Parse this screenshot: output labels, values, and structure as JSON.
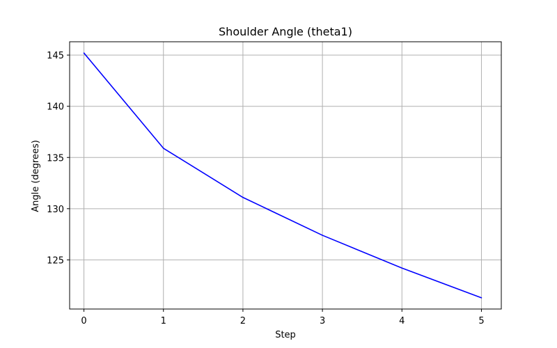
{
  "chart_data": {
    "type": "line",
    "title": "Shoulder Angle (theta1)",
    "xlabel": "Step",
    "ylabel": "Angle (degrees)",
    "x": [
      0,
      1,
      2,
      3,
      4,
      5
    ],
    "series": [
      {
        "values": [
          145.2,
          135.9,
          131.1,
          127.4,
          124.2,
          121.3
        ],
        "color": "#0000ff"
      }
    ],
    "xlim": [
      -0.18,
      5.25
    ],
    "ylim": [
      120.2,
      146.3
    ],
    "xticks": [
      0,
      1,
      2,
      3,
      4,
      5
    ],
    "yticks": [
      125,
      130,
      135,
      140,
      145
    ],
    "grid": true,
    "grid_color": "#b0b0b0"
  }
}
